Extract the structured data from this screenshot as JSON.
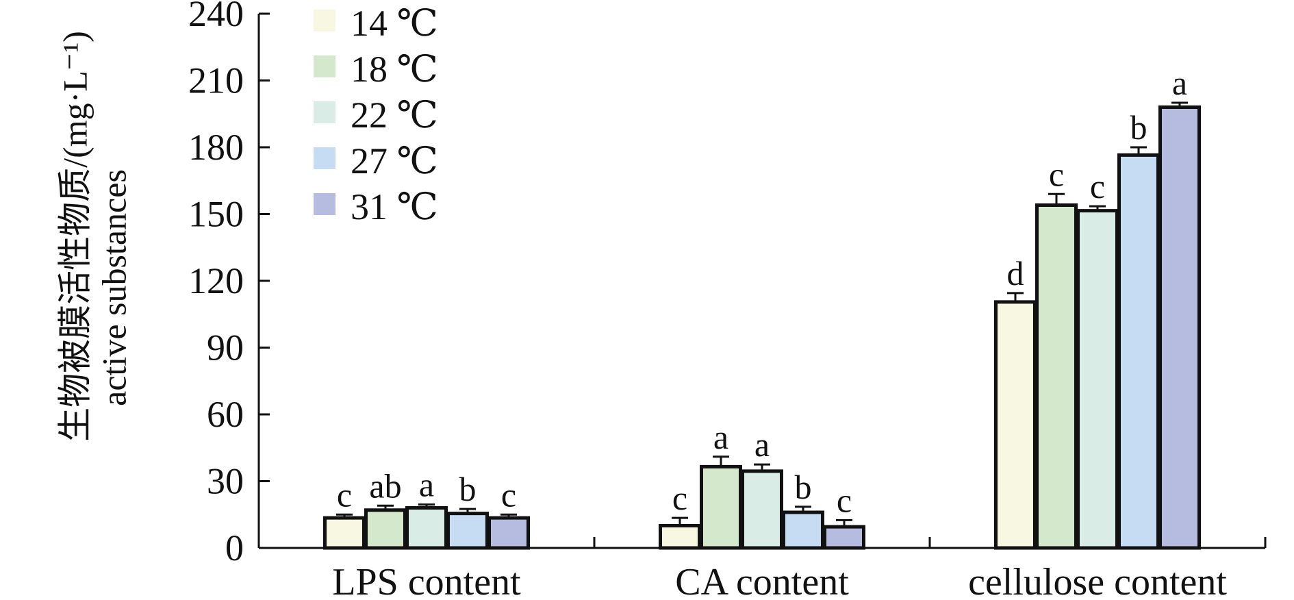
{
  "chart_data": {
    "type": "bar",
    "title": "",
    "xlabel": "",
    "ylabel": "生物被膜活性物质/(mg·L⁻¹)",
    "ylabel_en": "active substances",
    "ylim": [
      0,
      240
    ],
    "yticks": [
      0,
      30,
      60,
      90,
      120,
      150,
      180,
      210,
      240
    ],
    "grid": false,
    "legend_position": "top-left",
    "categories": [
      "LPS content",
      "CA content",
      "cellulose content"
    ],
    "series": [
      {
        "name": "14 ℃",
        "color": "#f8f8e2",
        "values": [
          13.5,
          10,
          110.5
        ],
        "errors": [
          1.5,
          3.5,
          4
        ],
        "labels": [
          "c",
          "c",
          "d"
        ]
      },
      {
        "name": "18 ℃",
        "color": "#d4e8cc",
        "values": [
          17,
          36.5,
          154
        ],
        "errors": [
          2,
          4.5,
          5
        ],
        "labels": [
          "ab",
          "a",
          "c"
        ]
      },
      {
        "name": "22 ℃",
        "color": "#d9ece6",
        "values": [
          18,
          34.5,
          151.5
        ],
        "errors": [
          1.5,
          3,
          2
        ],
        "labels": [
          "a",
          "a",
          "c"
        ]
      },
      {
        "name": "27 ℃",
        "color": "#c6dcf3",
        "values": [
          15.5,
          16,
          176.5
        ],
        "errors": [
          2,
          2.5,
          3.5
        ],
        "labels": [
          "b",
          "b",
          "b"
        ]
      },
      {
        "name": "31 ℃",
        "color": "#b6bcdf",
        "values": [
          13.5,
          9.5,
          198
        ],
        "errors": [
          1.5,
          3,
          2
        ],
        "labels": [
          "c",
          "c",
          "a"
        ]
      }
    ]
  }
}
